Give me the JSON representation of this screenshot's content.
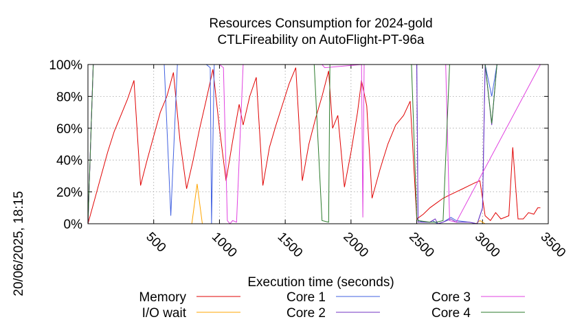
{
  "chart_data": {
    "type": "line",
    "title": [
      "Resources Consumption for 2024-gold",
      "CTLFireability on AutoFlight-PT-96a"
    ],
    "xlabel": "Execution time (seconds)",
    "ylabel": "",
    "side_label": "20/06/2025, 18:15",
    "xlim": [
      0,
      3500
    ],
    "ylim": [
      0,
      100
    ],
    "xticks": [
      500,
      1000,
      1500,
      2000,
      2500,
      3000,
      3500
    ],
    "yticks": [
      0,
      20,
      40,
      60,
      80,
      100
    ],
    "ytick_labels": [
      "0%",
      "20%",
      "40%",
      "60%",
      "80%",
      "100%"
    ],
    "grid": true,
    "legend_position": "bottom",
    "series": [
      {
        "name": "Memory",
        "color": "#e00000",
        "points": [
          [
            0,
            0
          ],
          [
            50,
            15
          ],
          [
            100,
            30
          ],
          [
            150,
            45
          ],
          [
            200,
            58
          ],
          [
            250,
            68
          ],
          [
            300,
            78
          ],
          [
            350,
            90
          ],
          [
            400,
            24
          ],
          [
            450,
            40
          ],
          [
            500,
            55
          ],
          [
            550,
            70
          ],
          [
            600,
            80
          ],
          [
            650,
            95
          ],
          [
            700,
            52
          ],
          [
            750,
            22
          ],
          [
            800,
            40
          ],
          [
            850,
            60
          ],
          [
            900,
            78
          ],
          [
            950,
            97
          ],
          [
            1000,
            60
          ],
          [
            1050,
            27
          ],
          [
            1100,
            52
          ],
          [
            1150,
            75
          ],
          [
            1180,
            62
          ],
          [
            1230,
            80
          ],
          [
            1280,
            92
          ],
          [
            1330,
            24
          ],
          [
            1380,
            48
          ],
          [
            1430,
            62
          ],
          [
            1480,
            75
          ],
          [
            1530,
            88
          ],
          [
            1580,
            98
          ],
          [
            1630,
            27
          ],
          [
            1680,
            50
          ],
          [
            1730,
            66
          ],
          [
            1780,
            80
          ],
          [
            1830,
            96
          ],
          [
            1860,
            60
          ],
          [
            1900,
            68
          ],
          [
            1950,
            23
          ],
          [
            2000,
            45
          ],
          [
            2050,
            70
          ],
          [
            2080,
            90
          ],
          [
            2120,
            74
          ],
          [
            2160,
            16
          ],
          [
            2220,
            34
          ],
          [
            2280,
            50
          ],
          [
            2340,
            62
          ],
          [
            2400,
            68
          ],
          [
            2450,
            77
          ],
          [
            2500,
            3
          ],
          [
            2550,
            6
          ],
          [
            2600,
            10
          ],
          [
            2650,
            13
          ],
          [
            2700,
            16
          ],
          [
            2750,
            18
          ],
          [
            2800,
            20
          ],
          [
            2850,
            22
          ],
          [
            2900,
            24
          ],
          [
            2950,
            26
          ],
          [
            2980,
            27
          ],
          [
            3020,
            5
          ],
          [
            3060,
            2
          ],
          [
            3100,
            7
          ],
          [
            3140,
            3
          ],
          [
            3200,
            5
          ],
          [
            3230,
            48
          ],
          [
            3270,
            3
          ],
          [
            3310,
            3
          ],
          [
            3350,
            7
          ],
          [
            3390,
            6
          ],
          [
            3420,
            10
          ],
          [
            3440,
            10
          ]
        ]
      },
      {
        "name": "I/O wait",
        "color": "#ffa500",
        "points": [
          [
            0,
            0
          ],
          [
            790,
            0
          ],
          [
            830,
            25
          ],
          [
            870,
            0
          ],
          [
            2950,
            0
          ],
          [
            2980,
            2
          ],
          [
            3020,
            0
          ],
          [
            3440,
            0
          ]
        ]
      },
      {
        "name": "Core 1",
        "color": "#4060e0",
        "points": [
          [
            0,
            0
          ],
          [
            40,
            100
          ],
          [
            580,
            100
          ],
          [
            630,
            5
          ],
          [
            680,
            100
          ],
          [
            900,
            100
          ],
          [
            930,
            98
          ],
          [
            940,
            0
          ],
          [
            960,
            100
          ],
          [
            2500,
            100
          ],
          [
            2510,
            2
          ],
          [
            2550,
            1
          ],
          [
            2600,
            1
          ],
          [
            2620,
            2
          ],
          [
            2660,
            0
          ],
          [
            2700,
            1
          ],
          [
            2760,
            4
          ],
          [
            2800,
            2
          ],
          [
            2900,
            1
          ],
          [
            2960,
            0
          ],
          [
            3000,
            10
          ],
          [
            3020,
            100
          ],
          [
            3070,
            80
          ],
          [
            3110,
            100
          ],
          [
            3440,
            100
          ]
        ]
      },
      {
        "name": "Core 2",
        "color": "#7030c0",
        "points": [
          [
            0,
            0
          ],
          [
            40,
            100
          ],
          [
            2500,
            100
          ],
          [
            2510,
            1
          ],
          [
            2600,
            1
          ],
          [
            2640,
            3
          ],
          [
            2660,
            0
          ],
          [
            2700,
            1
          ],
          [
            2760,
            3
          ],
          [
            2800,
            1
          ],
          [
            2900,
            1
          ],
          [
            2960,
            0
          ],
          [
            3000,
            10
          ],
          [
            3020,
            100
          ],
          [
            3070,
            62
          ],
          [
            3110,
            100
          ],
          [
            3440,
            100
          ]
        ]
      },
      {
        "name": "Core 3",
        "color": "#e040e0",
        "points": [
          [
            0,
            0
          ],
          [
            40,
            100
          ],
          [
            1000,
            100
          ],
          [
            1030,
            98
          ],
          [
            1060,
            2
          ],
          [
            1080,
            0
          ],
          [
            1100,
            2
          ],
          [
            1130,
            1
          ],
          [
            1180,
            100
          ],
          [
            1780,
            100
          ],
          [
            1800,
            98
          ],
          [
            2080,
            100
          ],
          [
            2090,
            4
          ],
          [
            2100,
            100
          ],
          [
            2500,
            100
          ],
          [
            2720,
            100
          ],
          [
            2750,
            2
          ],
          [
            2800,
            1
          ],
          [
            3440,
            100
          ]
        ]
      },
      {
        "name": "Core 4",
        "color": "#2a7a2a",
        "points": [
          [
            0,
            0
          ],
          [
            40,
            100
          ],
          [
            1720,
            100
          ],
          [
            1780,
            2
          ],
          [
            1830,
            1
          ],
          [
            1840,
            100
          ],
          [
            2460,
            100
          ],
          [
            2500,
            4
          ],
          [
            2510,
            2
          ],
          [
            2600,
            1
          ],
          [
            2650,
            1
          ],
          [
            2700,
            2
          ],
          [
            2750,
            100
          ],
          [
            3000,
            100
          ],
          [
            3020,
            100
          ],
          [
            3070,
            63
          ],
          [
            3110,
            100
          ],
          [
            3440,
            100
          ]
        ]
      }
    ]
  }
}
